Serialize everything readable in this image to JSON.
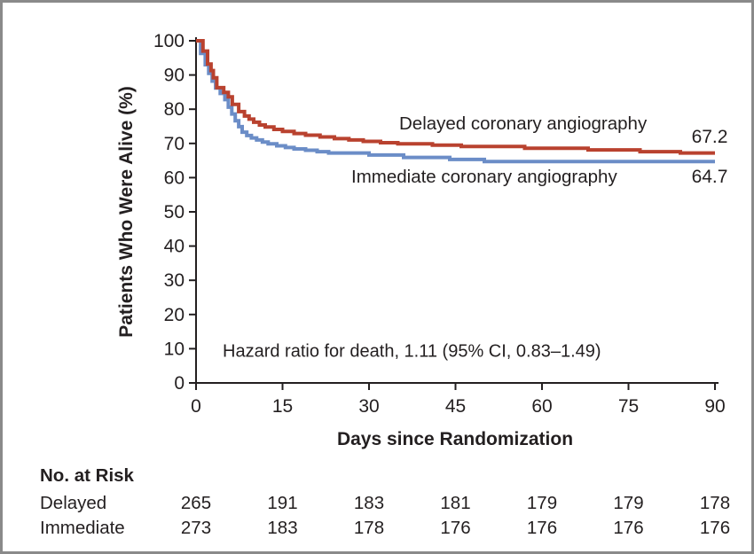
{
  "chart_data": {
    "type": "line",
    "subtype": "kaplan-meier-step",
    "title": "",
    "ylabel": "Patients Who Were Alive (%)",
    "xlabel": "Days since Randomization",
    "xlim": [
      0,
      90
    ],
    "ylim": [
      0,
      100
    ],
    "xticks": [
      0,
      15,
      30,
      45,
      60,
      75,
      90
    ],
    "yticks": [
      0,
      10,
      20,
      30,
      40,
      50,
      60,
      70,
      80,
      90,
      100
    ],
    "grid": false,
    "legend_position": "inline-labels",
    "annotation": "Hazard ratio for death, 1.11 (95% CI, 0.83–1.49)",
    "axis_color": "#231f20",
    "series": [
      {
        "id": "delayed",
        "label": "Delayed coronary angiography",
        "color": "#b9422f",
        "end_label": "67.2",
        "days": [
          0,
          1.2,
          2.0,
          2.6,
          3.0,
          3.6,
          4.8,
          5.6,
          6.3,
          7.4,
          8.4,
          9.2,
          10,
          11,
          12,
          13.5,
          15,
          17,
          19,
          21.5,
          24,
          26.5,
          29,
          32,
          35,
          41,
          46,
          57,
          68,
          77,
          84,
          90
        ],
        "values": [
          100,
          97.0,
          93.2,
          91.3,
          89.2,
          86.3,
          84.9,
          83.6,
          81.4,
          79.3,
          78.0,
          77.1,
          76.2,
          75.4,
          74.8,
          74.1,
          73.5,
          72.9,
          72.4,
          71.9,
          71.4,
          71.0,
          70.6,
          70.2,
          69.9,
          69.5,
          69.1,
          68.6,
          68.1,
          67.6,
          67.2,
          67.2
        ]
      },
      {
        "id": "immediate",
        "label": "Immediate coronary angiography",
        "color": "#6b8dc7",
        "end_label": "64.7",
        "days": [
          0,
          0.8,
          1.6,
          2.2,
          2.8,
          3.4,
          4.2,
          5.0,
          5.6,
          6.2,
          6.8,
          7.4,
          8.0,
          8.8,
          9.6,
          10.5,
          11.5,
          12.5,
          14,
          15.5,
          17,
          19,
          21,
          23,
          30,
          36,
          44,
          50,
          90
        ],
        "values": [
          100,
          96.3,
          93.0,
          90.5,
          88.2,
          86.2,
          84.6,
          82.8,
          80.6,
          78.6,
          76.6,
          74.9,
          73.3,
          72.3,
          71.6,
          71.0,
          70.4,
          69.9,
          69.3,
          68.8,
          68.4,
          68.0,
          67.6,
          67.2,
          66.6,
          65.9,
          65.3,
          64.7,
          64.7
        ]
      }
    ],
    "risk_table": {
      "title": "No. at Risk",
      "columns_days": [
        0,
        15,
        30,
        45,
        60,
        75,
        90
      ],
      "rows": [
        {
          "label": "Delayed",
          "values": [
            265,
            191,
            183,
            181,
            179,
            179,
            178
          ]
        },
        {
          "label": "Immediate",
          "values": [
            273,
            183,
            178,
            176,
            176,
            176,
            176
          ]
        }
      ]
    }
  }
}
